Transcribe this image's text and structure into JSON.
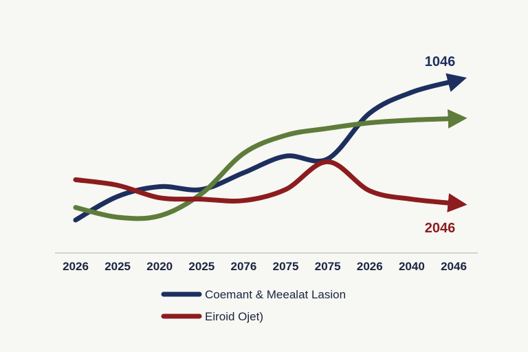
{
  "chart_data": {
    "type": "line",
    "title": "",
    "xlabel": "",
    "ylabel": "",
    "categories": [
      "2026",
      "2025",
      "2020",
      "2025",
      "2076",
      "2075",
      "2075",
      "2026",
      "2040",
      "2046"
    ],
    "grid": false,
    "legend_position": "bottom-center",
    "series": [
      {
        "name": "Coemant & Meealat Lasion",
        "color": "#1c2f5e",
        "values": [
          0.0,
          0.17,
          0.24,
          0.22,
          0.34,
          0.46,
          0.44,
          0.77,
          0.92,
          1.0
        ],
        "end_label": "1046",
        "arrow": true
      },
      {
        "name": "",
        "color": "#5e7c3a",
        "values": [
          0.09,
          0.02,
          0.03,
          0.19,
          0.48,
          0.61,
          0.66,
          0.7,
          0.72,
          0.73
        ],
        "end_label": "",
        "arrow": true
      },
      {
        "name": "Eiroid Ojet)",
        "color": "#8c1c1e",
        "values": [
          0.29,
          0.25,
          0.16,
          0.15,
          0.14,
          0.22,
          0.42,
          0.21,
          0.15,
          0.12
        ],
        "end_label": "2046",
        "arrow": true
      }
    ],
    "legend": [
      {
        "label": "Coemant & Meealat Lasion",
        "color": "#1c2f5e"
      },
      {
        "label": "Eiroid Ojet)",
        "color": "#8c1c1e"
      }
    ]
  }
}
